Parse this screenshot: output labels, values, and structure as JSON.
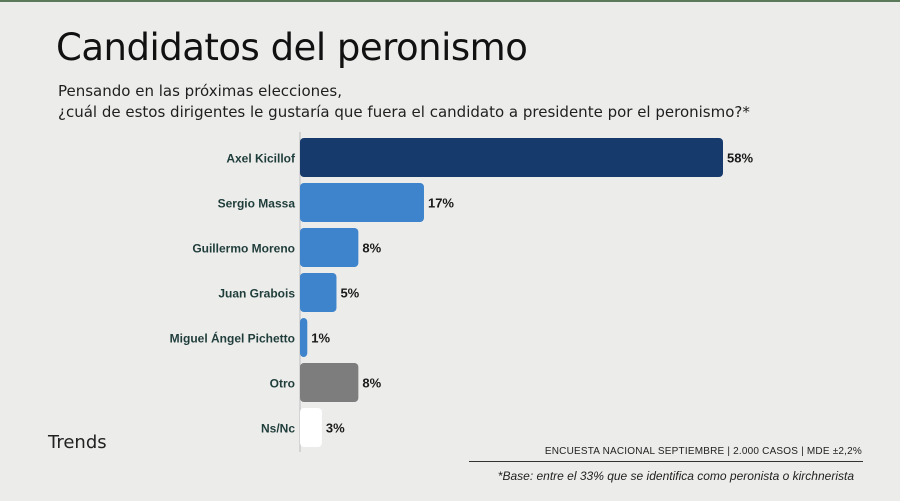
{
  "header": {
    "title": "Candidatos del peronismo",
    "subtitle_line1": "Pensando en las próximas elecciones,",
    "subtitle_line2": "¿cuál de estos dirigentes le gustaría que fuera el candidato a presidente por el peronismo?*"
  },
  "footer": {
    "brand": "Trends",
    "survey_info": "ENCUESTA NACIONAL SEPTIEMBRE | 2.000 CASOS | MDE ±2,2%",
    "footnote": "*Base: entre el 33% que se identifica como peronista o kirchnerista"
  },
  "chart_data": {
    "type": "bar",
    "orientation": "horizontal",
    "categories": [
      "Axel Kicillof",
      "Sergio Massa",
      "Guillermo Moreno",
      "Juan Grabois",
      "Miguel Ángel Pichetto",
      "Otro",
      "Ns/Nc"
    ],
    "values": [
      58,
      17,
      8,
      5,
      1,
      8,
      3
    ],
    "value_labels": [
      "58%",
      "17%",
      "8%",
      "5%",
      "1%",
      "8%",
      "3%"
    ],
    "colors": [
      "#163a6b",
      "#3d84cc",
      "#3d84cc",
      "#3d84cc",
      "#3d84cc",
      "#7d7d7d",
      "#ffffff"
    ],
    "label_color": "#1f3d3a",
    "xlim": [
      0,
      58
    ]
  }
}
